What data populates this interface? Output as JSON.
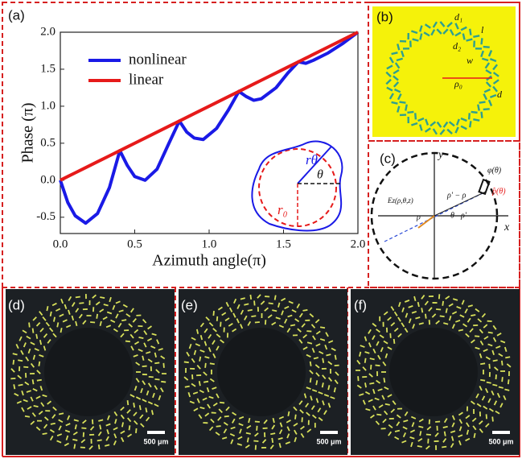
{
  "chart_data": {
    "type": "line",
    "xlabel": "Azimuth angle(π)",
    "ylabel": "Phase (π)",
    "x": [
      0,
      0.05,
      0.1,
      0.17,
      0.25,
      0.33,
      0.4,
      0.45,
      0.5,
      0.57,
      0.65,
      0.73,
      0.8,
      0.85,
      0.9,
      0.96,
      1.05,
      1.13,
      1.2,
      1.25,
      1.3,
      1.35,
      1.45,
      1.53,
      1.6,
      1.65,
      1.7,
      1.8,
      1.9,
      2.0
    ],
    "series": [
      {
        "name": "nonlinear",
        "color": "#1a1ae6",
        "values": [
          0,
          -0.3,
          -0.48,
          -0.58,
          -0.45,
          -0.1,
          0.4,
          0.2,
          0.05,
          0.0,
          0.15,
          0.5,
          0.8,
          0.65,
          0.57,
          0.55,
          0.7,
          0.95,
          1.2,
          1.13,
          1.08,
          1.1,
          1.25,
          1.45,
          1.6,
          1.58,
          1.62,
          1.72,
          1.85,
          2.0
        ]
      },
      {
        "name": "linear",
        "color": "#e61a1a",
        "values": [
          0,
          0.05,
          0.1,
          0.17,
          0.25,
          0.33,
          0.4,
          0.45,
          0.5,
          0.57,
          0.65,
          0.73,
          0.8,
          0.85,
          0.9,
          0.96,
          1.05,
          1.13,
          1.2,
          1.25,
          1.3,
          1.35,
          1.45,
          1.53,
          1.6,
          1.65,
          1.7,
          1.8,
          1.9,
          2.0
        ]
      }
    ],
    "xlim": [
      0,
      2.0
    ],
    "ylim": [
      -0.72,
      2.0
    ],
    "xticks": [
      {
        "value": 0,
        "label": "0.0"
      },
      {
        "value": 0.5,
        "label": "0.5"
      },
      {
        "value": 1,
        "label": "1.0"
      },
      {
        "value": 1.5,
        "label": "1.5"
      },
      {
        "value": 2,
        "label": "2.0"
      }
    ],
    "yticks": [
      {
        "value": -0.5,
        "label": "-0.5"
      },
      {
        "value": 0,
        "label": "0.0"
      },
      {
        "value": 0.5,
        "label": "0.5"
      },
      {
        "value": 1,
        "label": "1.0"
      },
      {
        "value": 1.5,
        "label": "1.5"
      },
      {
        "value": 2,
        "label": "2.0"
      }
    ],
    "legend": "upper left",
    "grid": false
  },
  "figure": {
    "labels": [
      "(a)",
      "(b)",
      "(c)",
      "(d)",
      "(e)",
      "(f)"
    ],
    "inset_a": [
      "rθ",
      "θ",
      "r₀"
    ],
    "panel_b": [
      "d₁",
      "l",
      "d₂",
      "w",
      "ρ₀",
      "d"
    ],
    "panel_c": [
      "y",
      "x",
      "φ(θ)",
      "p̂(θ)",
      "Ez(ρ,θ,z)",
      "ρ' − ρ",
      "ρ",
      "ρ'",
      "θ"
    ],
    "scale_bars": [
      "500 μm",
      "500 μm",
      "500 μm"
    ]
  }
}
